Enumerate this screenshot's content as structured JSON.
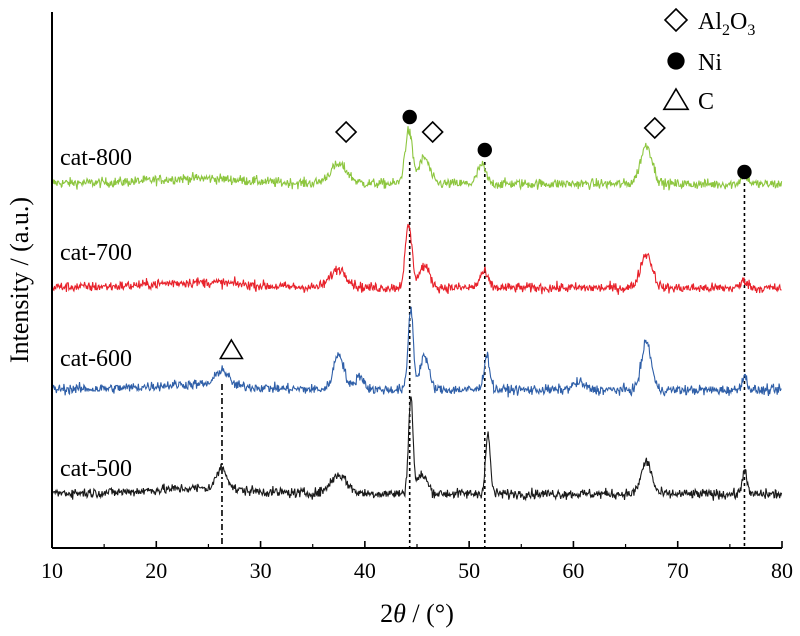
{
  "chart_data": {
    "type": "line",
    "xlabel_parts": [
      "2",
      "θ",
      " / (°)"
    ],
    "ylabel": "Intensity / (a.u.)",
    "xlim": [
      10,
      80
    ],
    "xticks": [
      10,
      20,
      30,
      40,
      50,
      60,
      70,
      80
    ],
    "y_scale": "arbitrary units, stacked offset patterns",
    "grid": false,
    "legend": {
      "placement": "top-right",
      "entries": [
        {
          "marker": "diamond",
          "label_parts": [
            "Al",
            "2",
            "O",
            "3"
          ]
        },
        {
          "marker": "filled-circle",
          "label": "Ni"
        },
        {
          "marker": "triangle",
          "label": "C"
        }
      ]
    },
    "series": [
      {
        "name": "cat-800",
        "color": "#8DC63F",
        "baseline": 1.0,
        "peaks": [
          {
            "x": 37.5,
            "h": 0.3,
            "w": 1.2
          },
          {
            "x": 44.2,
            "h": 0.85,
            "w": 0.5
          },
          {
            "x": 45.7,
            "h": 0.42,
            "w": 0.7
          },
          {
            "x": 51.2,
            "h": 0.3,
            "w": 0.55
          },
          {
            "x": 67.0,
            "h": 0.62,
            "w": 0.8
          },
          {
            "x": 76.4,
            "h": 0.15,
            "w": 0.5
          }
        ]
      },
      {
        "name": "cat-700",
        "color": "#E8222B",
        "baseline": 1.0,
        "peaks": [
          {
            "x": 37.5,
            "h": 0.3,
            "w": 1.1
          },
          {
            "x": 44.2,
            "h": 1.0,
            "w": 0.45
          },
          {
            "x": 45.7,
            "h": 0.35,
            "w": 0.7
          },
          {
            "x": 51.4,
            "h": 0.25,
            "w": 0.55
          },
          {
            "x": 67.0,
            "h": 0.55,
            "w": 0.8
          },
          {
            "x": 76.4,
            "h": 0.12,
            "w": 0.5
          }
        ]
      },
      {
        "name": "cat-600",
        "color": "#2F5FA8",
        "baseline": 1.0,
        "peaks": [
          {
            "x": 26.3,
            "h": 0.25,
            "w": 0.8
          },
          {
            "x": 37.5,
            "h": 0.58,
            "w": 0.7
          },
          {
            "x": 39.5,
            "h": 0.22,
            "w": 0.6
          },
          {
            "x": 44.4,
            "h": 1.3,
            "w": 0.35
          },
          {
            "x": 45.7,
            "h": 0.55,
            "w": 0.6
          },
          {
            "x": 51.7,
            "h": 0.55,
            "w": 0.4
          },
          {
            "x": 60.5,
            "h": 0.12,
            "w": 0.8
          },
          {
            "x": 67.0,
            "h": 0.78,
            "w": 0.65
          },
          {
            "x": 76.4,
            "h": 0.22,
            "w": 0.4
          }
        ]
      },
      {
        "name": "cat-500",
        "color": "#1A1A1A",
        "baseline": 1.0,
        "peaks": [
          {
            "x": 26.3,
            "h": 0.35,
            "w": 0.7
          },
          {
            "x": 37.5,
            "h": 0.3,
            "w": 1.1
          },
          {
            "x": 44.4,
            "h": 1.55,
            "w": 0.3
          },
          {
            "x": 45.5,
            "h": 0.3,
            "w": 0.7
          },
          {
            "x": 51.8,
            "h": 0.95,
            "w": 0.32
          },
          {
            "x": 67.0,
            "h": 0.52,
            "w": 0.7
          },
          {
            "x": 76.4,
            "h": 0.4,
            "w": 0.3
          }
        ]
      }
    ],
    "reference_lines": [
      {
        "x": 26.3,
        "style": "dash-dot"
      },
      {
        "x": 44.3,
        "style": "dotted"
      },
      {
        "x": 51.5,
        "style": "dotted"
      },
      {
        "x": 76.4,
        "style": "dotted"
      }
    ],
    "annotations": [
      {
        "marker": "diamond",
        "x": 38.2,
        "above": "cat-800"
      },
      {
        "marker": "filled-circle",
        "x": 44.3,
        "above": "cat-800"
      },
      {
        "marker": "diamond",
        "x": 46.5,
        "above": "cat-800"
      },
      {
        "marker": "filled-circle",
        "x": 51.5,
        "above": "cat-800"
      },
      {
        "marker": "diamond",
        "x": 67.8,
        "above": "cat-800"
      },
      {
        "marker": "filled-circle",
        "x": 76.4,
        "above": "cat-800"
      },
      {
        "marker": "triangle",
        "x": 27.2,
        "above": "cat-600"
      }
    ]
  }
}
